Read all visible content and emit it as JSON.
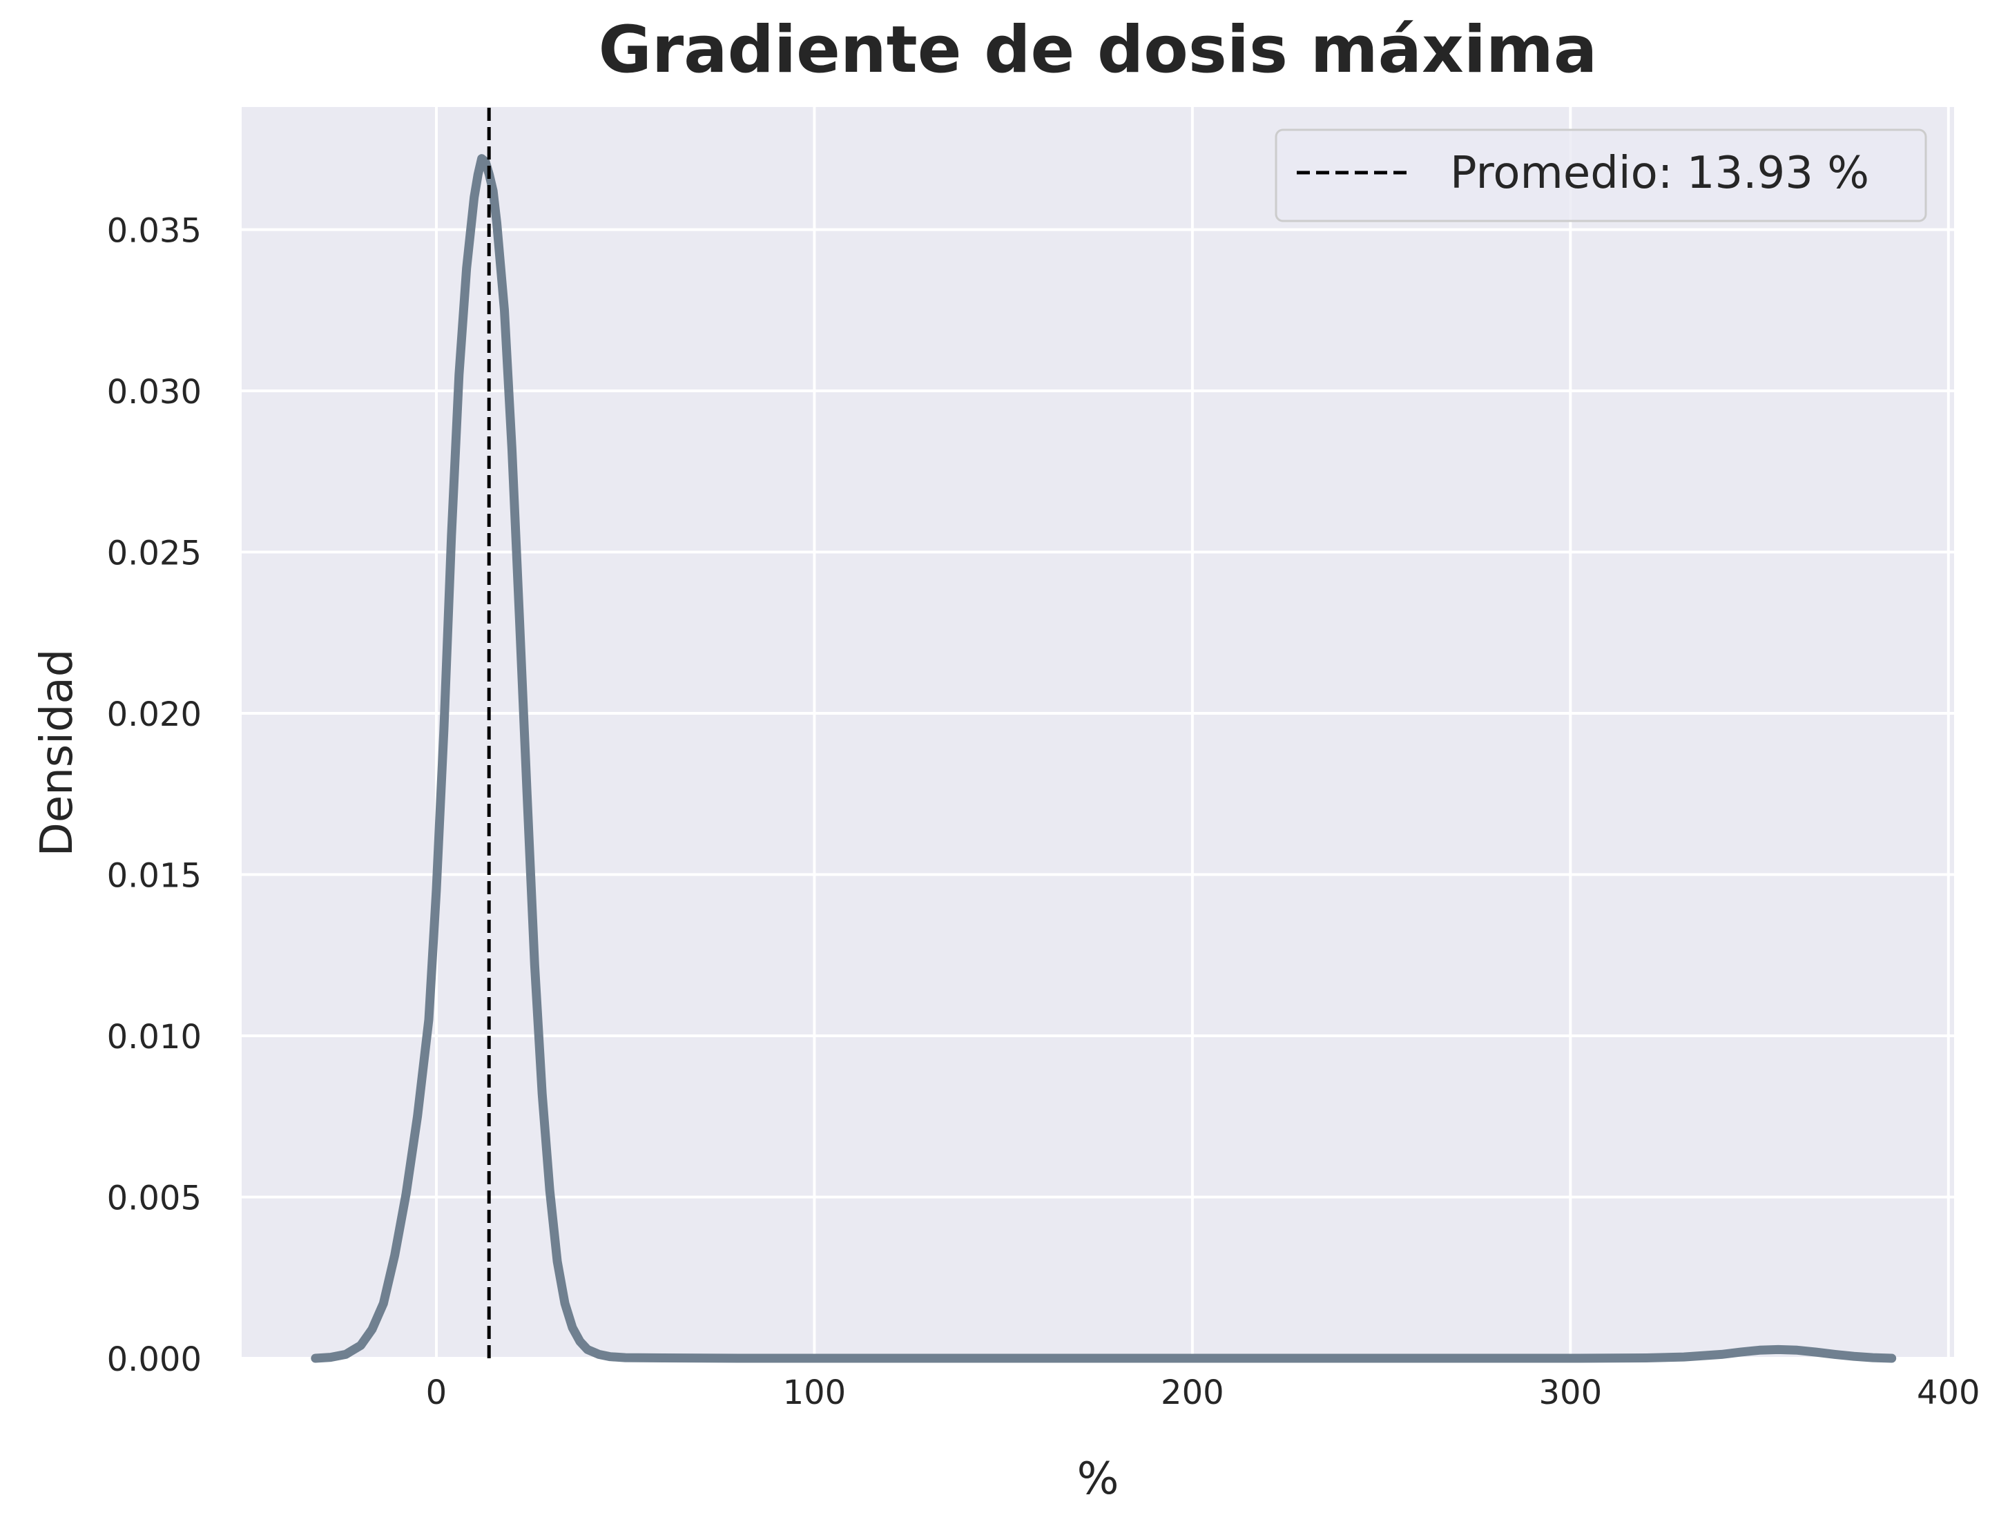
{
  "chart_data": {
    "type": "line",
    "title": "Gradiente de dosis máxima",
    "xlabel": "%",
    "ylabel": "Densidad",
    "xlim": [
      -51.5,
      401.5
    ],
    "ylim": [
      0,
      0.0388
    ],
    "xticks": [
      0,
      100,
      200,
      300,
      400
    ],
    "yticks": [
      0.0,
      0.005,
      0.01,
      0.015,
      0.02,
      0.025,
      0.03,
      0.035
    ],
    "xtick_labels": [
      "0",
      "100",
      "200",
      "300",
      "400"
    ],
    "ytick_labels": [
      "0.000",
      "0.005",
      "0.010",
      "0.015",
      "0.020",
      "0.025",
      "0.030",
      "0.035"
    ],
    "grid": true,
    "legend_position": "top-right",
    "colors": {
      "background": "#eaeaf2",
      "grid": "#ffffff",
      "kde_line": "#708090",
      "mean_line": "#000000"
    },
    "series": [
      {
        "style": "solid",
        "x": [
          -32,
          -28,
          -24,
          -20,
          -17,
          -14,
          -11,
          -8,
          -5,
          -2,
          0,
          2,
          4,
          6,
          8,
          10,
          11,
          12,
          13,
          14,
          15,
          16,
          18,
          20,
          22,
          24,
          26,
          28,
          30,
          32,
          34,
          36,
          38,
          40,
          43,
          46,
          50,
          60,
          80,
          100,
          150,
          200,
          250,
          300,
          320,
          330,
          340,
          345,
          350,
          355,
          360,
          365,
          370,
          375,
          380,
          385
        ],
        "y": [
          0.0,
          3e-05,
          0.00012,
          0.0004,
          0.0009,
          0.0017,
          0.0032,
          0.0051,
          0.0075,
          0.0105,
          0.0145,
          0.0195,
          0.0255,
          0.0305,
          0.0338,
          0.036,
          0.0367,
          0.0372,
          0.0371,
          0.0367,
          0.0362,
          0.0352,
          0.0325,
          0.0282,
          0.0229,
          0.0175,
          0.0122,
          0.0082,
          0.0052,
          0.003,
          0.0017,
          0.00095,
          0.00052,
          0.00027,
          0.00012,
          5e-05,
          2e-05,
          1e-05,
          0.0,
          0.0,
          0.0,
          0.0,
          0.0,
          0.0,
          1e-05,
          4e-05,
          0.00012,
          0.00019,
          0.00025,
          0.00027,
          0.00025,
          0.00019,
          0.00012,
          6e-05,
          2e-05,
          0.0
        ]
      },
      {
        "name": "Promedio: 13.93 %",
        "style": "dashed",
        "x": [
          13.93,
          13.93
        ],
        "y": [
          0,
          0.0388
        ]
      }
    ]
  }
}
